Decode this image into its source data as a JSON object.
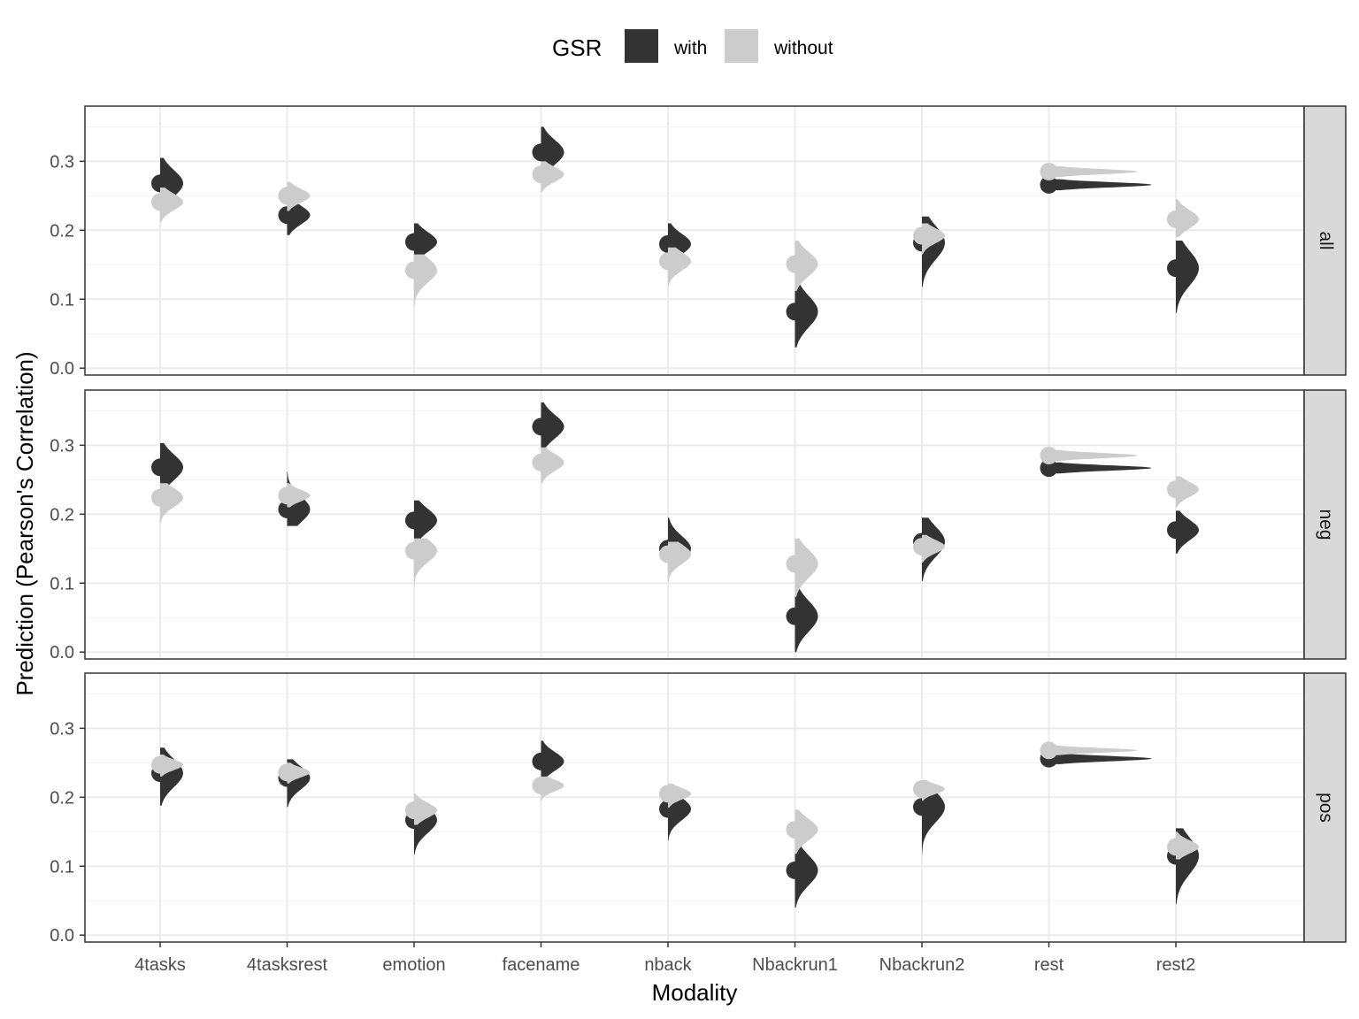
{
  "chart_data": {
    "type": "violin",
    "xlabel": "Modality",
    "ylabel": "Prediction (Pearson's Correlation)",
    "categories": [
      "4tasks",
      "4tasksrest",
      "emotion",
      "facename",
      "nback",
      "Nbackrun1",
      "Nbackrun2",
      "rest",
      "rest2"
    ],
    "ylim": [
      -0.01,
      0.38
    ],
    "yticks": [
      "0.0",
      "0.1",
      "0.2",
      "0.3"
    ],
    "grid": true,
    "legend": {
      "title": "GSR",
      "position": "top",
      "entries": [
        {
          "label": "with",
          "color": "#333333"
        },
        {
          "label": "without",
          "color": "#cccccc"
        }
      ]
    },
    "facets": [
      {
        "label": "all",
        "series": [
          {
            "legend_entry": "with",
            "color": "#333333",
            "mean": [
              0.268,
              0.222,
              0.183,
              0.313,
              0.18,
              0.082,
              0.182,
              0.266,
              0.145
            ],
            "min": [
              0.225,
              0.193,
              0.15,
              0.275,
              0.148,
              0.03,
              0.118,
              0.258,
              0.08
            ],
            "max": [
              0.305,
              0.25,
              0.21,
              0.35,
              0.21,
              0.125,
              0.22,
              0.274,
              0.185
            ]
          },
          {
            "legend_entry": "without",
            "color": "#cccccc",
            "mean": [
              0.241,
              0.25,
              0.142,
              0.281,
              0.155,
              0.151,
              0.192,
              0.285,
              0.216
            ],
            "min": [
              0.212,
              0.228,
              0.09,
              0.255,
              0.118,
              0.112,
              0.165,
              0.277,
              0.19
            ],
            "max": [
              0.262,
              0.27,
              0.165,
              0.3,
              0.175,
              0.185,
              0.21,
              0.293,
              0.245
            ]
          }
        ]
      },
      {
        "label": "neg",
        "series": [
          {
            "legend_entry": "with",
            "color": "#333333",
            "mean": [
              0.268,
              0.207,
              0.191,
              0.327,
              0.15,
              0.052,
              0.16,
              0.267,
              0.177
            ],
            "min": [
              0.225,
              0.183,
              0.15,
              0.29,
              0.118,
              0.0,
              0.103,
              0.259,
              0.143
            ],
            "max": [
              0.303,
              0.262,
              0.22,
              0.362,
              0.195,
              0.093,
              0.195,
              0.275,
              0.205
            ]
          },
          {
            "legend_entry": "without",
            "color": "#cccccc",
            "mean": [
              0.224,
              0.227,
              0.147,
              0.275,
              0.142,
              0.128,
              0.153,
              0.285,
              0.236
            ],
            "min": [
              0.188,
              0.21,
              0.095,
              0.245,
              0.1,
              0.08,
              0.13,
              0.277,
              0.21
            ],
            "max": [
              0.245,
              0.245,
              0.165,
              0.297,
              0.16,
              0.165,
              0.17,
              0.293,
              0.255
            ]
          }
        ]
      },
      {
        "label": "pos",
        "series": [
          {
            "legend_entry": "with",
            "color": "#333333",
            "mean": [
              0.235,
              0.228,
              0.167,
              0.252,
              0.183,
              0.094,
              0.186,
              0.256,
              0.115
            ],
            "min": [
              0.188,
              0.186,
              0.117,
              0.225,
              0.137,
              0.04,
              0.117,
              0.248,
              0.045
            ],
            "max": [
              0.272,
              0.255,
              0.195,
              0.282,
              0.205,
              0.13,
              0.21,
              0.264,
              0.155
            ]
          },
          {
            "legend_entry": "without",
            "color": "#cccccc",
            "mean": [
              0.247,
              0.236,
              0.181,
              0.217,
              0.205,
              0.153,
              0.212,
              0.268,
              0.128
            ],
            "min": [
              0.23,
              0.22,
              0.16,
              0.195,
              0.185,
              0.118,
              0.195,
              0.261,
              0.11
            ],
            "max": [
              0.262,
              0.25,
              0.205,
              0.23,
              0.22,
              0.182,
              0.225,
              0.275,
              0.15
            ]
          }
        ]
      }
    ]
  }
}
